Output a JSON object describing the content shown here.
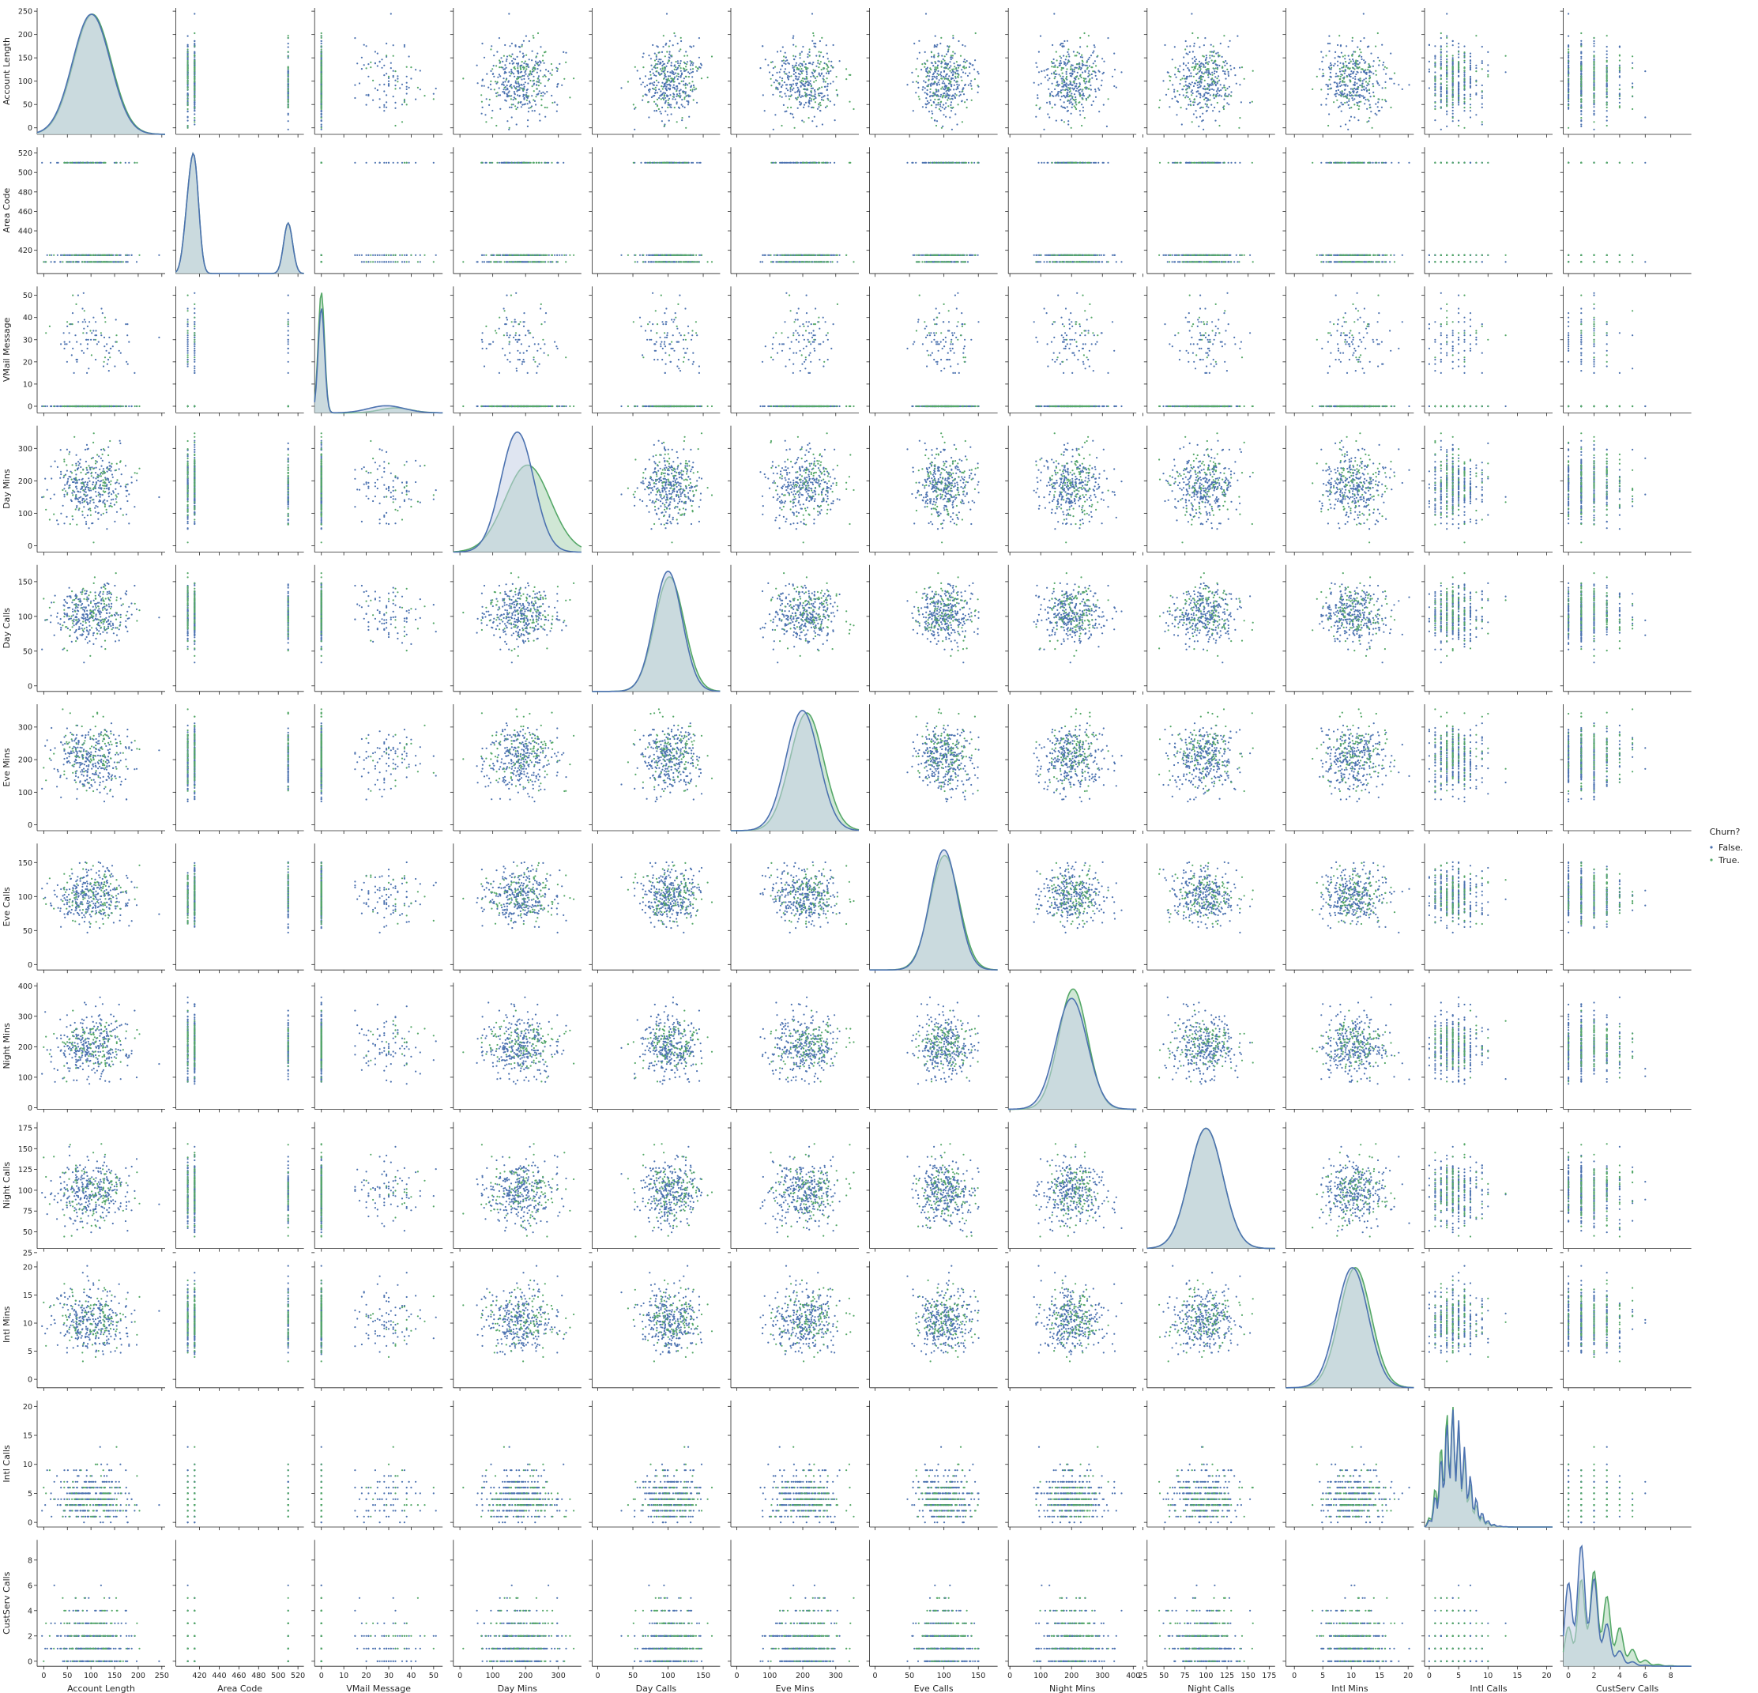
{
  "chart_data": {
    "type": "scatter",
    "subtype": "pairplot",
    "variables": [
      "Account Length",
      "Area Code",
      "VMail Message",
      "Day Mins",
      "Day Calls",
      "Eve Mins",
      "Eve Calls",
      "Night Mins",
      "Night Calls",
      "Intl Mins",
      "Intl Calls",
      "CustServ Calls"
    ],
    "ranges": [
      [
        -14,
        257
      ],
      [
        396,
        526
      ],
      [
        -3,
        54
      ],
      [
        -20,
        370
      ],
      [
        -8,
        174
      ],
      [
        -18,
        370
      ],
      [
        -8,
        178
      ],
      [
        -5,
        410
      ],
      [
        30,
        182
      ],
      [
        -1.5,
        21
      ],
      [
        -0.8,
        21
      ],
      [
        -0.4,
        9.6
      ]
    ],
    "ticks": [
      [
        0,
        50,
        100,
        150,
        200,
        250
      ],
      [
        420,
        440,
        460,
        480,
        500,
        520
      ],
      [
        0,
        10,
        20,
        30,
        40,
        50
      ],
      [
        0,
        100,
        200,
        300
      ],
      [
        0,
        50,
        100,
        150
      ],
      [
        0,
        100,
        200,
        300
      ],
      [
        0,
        50,
        100,
        150
      ],
      [
        0,
        100,
        200,
        300,
        400
      ],
      [
        25,
        50,
        75,
        100,
        125,
        150,
        175
      ],
      [
        0,
        5,
        10,
        15,
        20
      ],
      [
        0,
        5,
        10,
        15,
        20
      ],
      [
        0,
        2,
        4,
        6,
        8
      ]
    ],
    "distributions": [
      {
        "kind": "normal",
        "False": [
          101,
          40
        ],
        "True": [
          103,
          40
        ]
      },
      {
        "kind": "discrete",
        "values": [
          408,
          415,
          510
        ],
        "False": [
          0.25,
          0.5,
          0.25
        ],
        "True": [
          0.25,
          0.5,
          0.25
        ]
      },
      {
        "kind": "vmail",
        "False_zero_share": 0.72,
        "False_mean": 29,
        "False_sd": 8,
        "True_zero_share": 0.83,
        "True_mean": 33,
        "True_sd": 7
      },
      {
        "kind": "normal",
        "False": [
          175,
          50
        ],
        "True": [
          206,
          69
        ]
      },
      {
        "kind": "normal",
        "False": [
          100,
          20
        ],
        "True": [
          102,
          21
        ]
      },
      {
        "kind": "normal",
        "False": [
          199,
          50
        ],
        "True": [
          212,
          51
        ]
      },
      {
        "kind": "normal",
        "False": [
          100,
          20
        ],
        "True": [
          101,
          21
        ]
      },
      {
        "kind": "normal",
        "False": [
          200,
          51
        ],
        "True": [
          205,
          47
        ]
      },
      {
        "kind": "normal",
        "False": [
          100,
          20
        ],
        "True": [
          100,
          20
        ]
      },
      {
        "kind": "normal",
        "False": [
          10.2,
          2.8
        ],
        "True": [
          10.7,
          2.8
        ]
      },
      {
        "kind": "poisson",
        "False": 4.5,
        "True": 4.2
      },
      {
        "kind": "poisson",
        "False": 1.45,
        "True": 2.2
      }
    ],
    "legend": {
      "title": "Churn?",
      "entries": [
        "False.",
        "True."
      ],
      "position": "right"
    },
    "colors": {
      "False.": "#4c72b0",
      "True.": "#55a868",
      "fill_False": "#c5cfe6",
      "fill_True": "#a9d4b2",
      "axis": "#262626"
    },
    "grid": false
  }
}
